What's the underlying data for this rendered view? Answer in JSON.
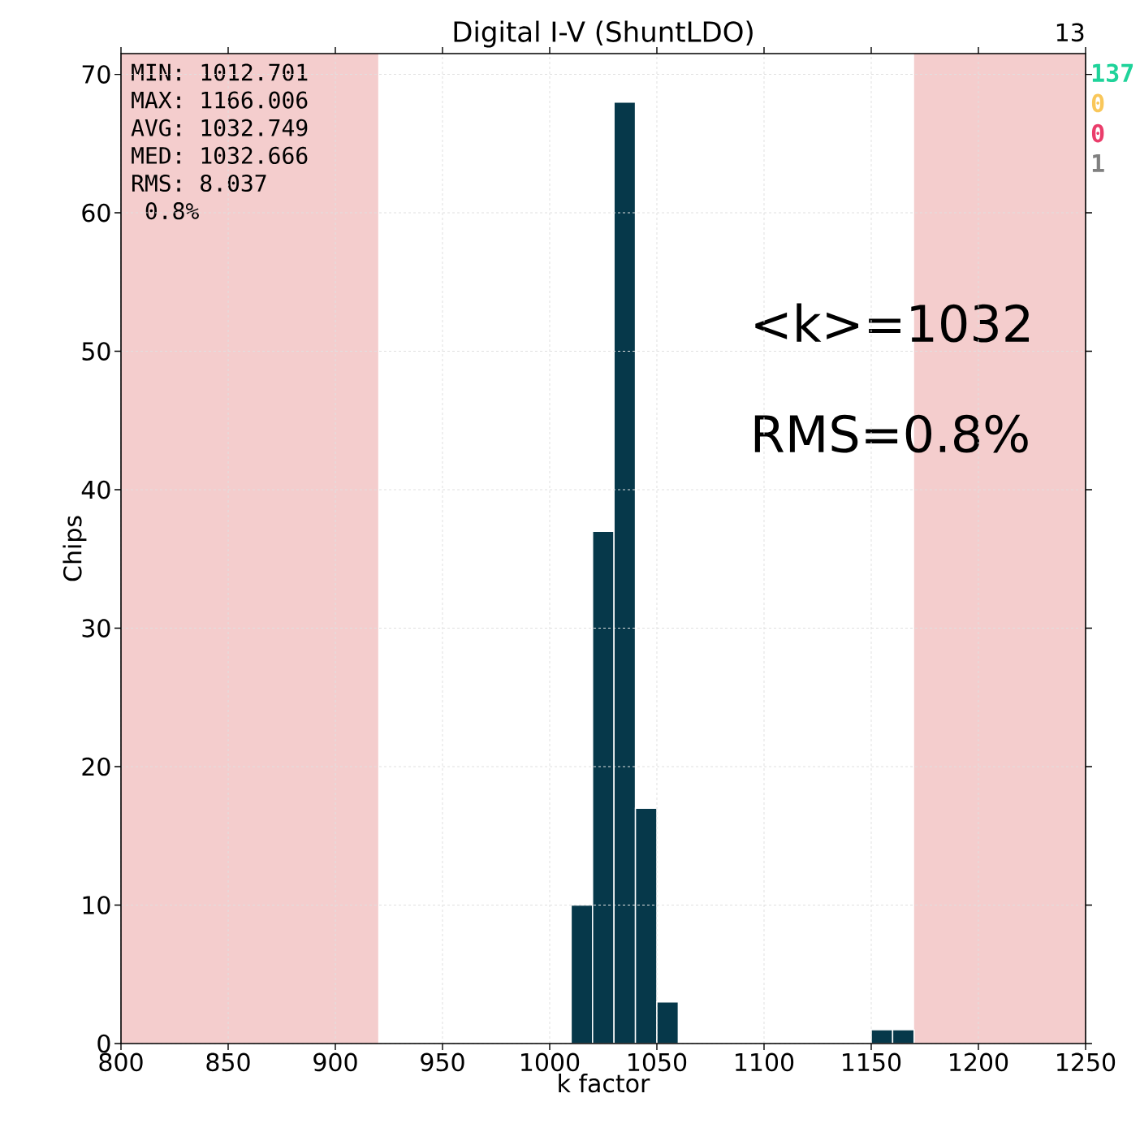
{
  "chart_data": {
    "type": "histogram",
    "title": "Digital I-V (ShuntLDO)",
    "xlabel": "k factor",
    "ylabel": "Chips",
    "bins": [
      1010,
      1020,
      1030,
      1040,
      1050,
      1060,
      1070,
      1080,
      1090,
      1100,
      1110,
      1120,
      1130,
      1140,
      1150,
      1160,
      1170
    ],
    "values": [
      10,
      37,
      68,
      17,
      3,
      0,
      0,
      0,
      0,
      0,
      0,
      0,
      0,
      0,
      1,
      1
    ],
    "color": "#06384a",
    "xlim": [
      800,
      1250
    ],
    "ylim": [
      0,
      71.5
    ],
    "xticks": [
      800,
      850,
      900,
      950,
      1000,
      1050,
      1100,
      1150,
      1200,
      1250
    ],
    "yticks": [
      0,
      10,
      20,
      30,
      40,
      50,
      60,
      70
    ],
    "grid": true,
    "bands": [
      {
        "axis": "x",
        "from": 800,
        "to": 920,
        "color": "#f4cdcd"
      },
      {
        "axis": "x",
        "from": 1170,
        "to": 1250,
        "color": "#f4cdcd"
      }
    ],
    "annotations": [
      "MIN: 1012.701",
      "MAX: 1166.006",
      "AVG: 1032.749",
      "MED: 1032.666",
      "RMS: 8.037",
      "     0.8%",
      "<k>=1032",
      "RMS=0.8%",
      "13",
      "137",
      "0",
      "0",
      "1"
    ]
  }
}
